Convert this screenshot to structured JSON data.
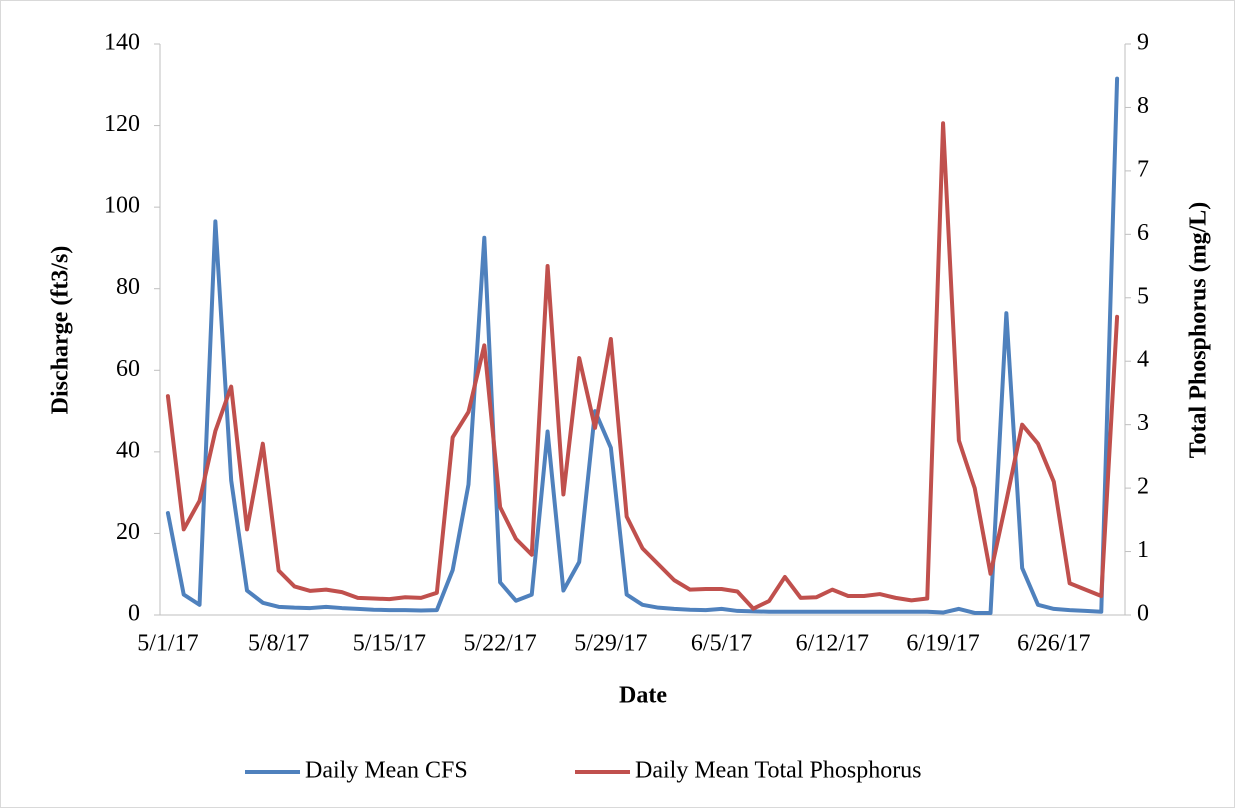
{
  "chart_data": {
    "type": "line",
    "x_label": "Date",
    "y_label": "Discharge (ft3/s)",
    "y2_label": "Total Phosphorus (mg/L)",
    "categories": [
      "5/1/17",
      null,
      null,
      null,
      null,
      null,
      null,
      "5/8/17",
      null,
      null,
      null,
      null,
      null,
      null,
      "5/15/17",
      null,
      null,
      null,
      null,
      null,
      null,
      "5/22/17",
      null,
      null,
      null,
      null,
      null,
      null,
      "5/29/17",
      null,
      null,
      null,
      null,
      null,
      null,
      "6/5/17",
      null,
      null,
      null,
      null,
      null,
      null,
      "6/12/17",
      null,
      null,
      null,
      null,
      null,
      null,
      "6/19/17",
      null,
      null,
      null,
      null,
      null,
      null,
      "6/26/17",
      null,
      null,
      null,
      null
    ],
    "series": [
      {
        "name": "Daily Mean CFS",
        "color": "#4f81bd",
        "values": [
          25,
          5,
          2.5,
          96.5,
          33,
          6,
          3,
          2,
          1.8,
          1.7,
          2,
          1.7,
          1.5,
          1.3,
          1.2,
          1.2,
          1.1,
          1.2,
          11,
          32,
          92.5,
          8,
          3.5,
          5,
          45,
          6,
          13,
          50,
          41,
          5,
          2.5,
          1.8,
          1.5,
          1.3,
          1.2,
          1.5,
          1,
          0.9,
          0.8,
          0.8,
          0.8,
          0.8,
          0.8,
          0.8,
          0.8,
          0.8,
          0.8,
          0.8,
          0.8,
          0.6,
          1.5,
          0.5,
          0.5,
          74,
          11.5,
          2.5,
          1.5,
          1.2,
          1,
          0.8,
          131.5
        ]
      },
      {
        "name": "Daily Mean Total Phosphorus",
        "color": "#c0504d",
        "axis": "y2",
        "values": [
          3.45,
          1.35,
          1.8,
          2.9,
          3.6,
          1.35,
          2.7,
          0.7,
          0.45,
          0.38,
          0.4,
          0.36,
          0.27,
          0.26,
          0.25,
          0.28,
          0.27,
          0.35,
          2.8,
          3.2,
          4.25,
          1.7,
          1.2,
          0.95,
          5.5,
          1.9,
          4.05,
          2.95,
          4.35,
          1.55,
          1.05,
          0.8,
          0.55,
          0.4,
          0.41,
          0.41,
          0.37,
          0.1,
          0.22,
          0.6,
          0.27,
          0.28,
          0.4,
          0.3,
          0.3,
          0.33,
          0.27,
          0.23,
          0.26,
          7.75,
          2.75,
          2,
          0.65,
          1.8,
          3,
          2.7,
          2.1,
          0.5,
          0.4,
          0.3,
          4.7
        ]
      }
    ],
    "ylim": [
      0,
      140
    ],
    "yticks": [
      0,
      20,
      40,
      60,
      80,
      100,
      120,
      140
    ],
    "y2lim": [
      0,
      9
    ],
    "y2ticks": [
      0,
      1,
      2,
      3,
      4,
      5,
      6,
      7,
      8,
      9
    ],
    "grid": false,
    "legend": "bottom"
  }
}
